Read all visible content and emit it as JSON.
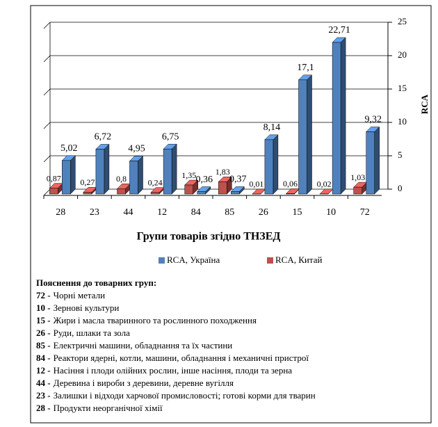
{
  "chart_data": {
    "type": "bar3d",
    "x_label": "Групи товарів згідно ТНЗЕД",
    "y_label": "RCA",
    "categories": [
      "28",
      "23",
      "44",
      "12",
      "84",
      "85",
      "26",
      "15",
      "10",
      "72"
    ],
    "series": [
      {
        "name": "RCA, Україна",
        "color": "#4f81bd",
        "values": [
          5.02,
          6.72,
          4.95,
          6.75,
          0.36,
          0.37,
          8.14,
          17.1,
          22.71,
          9.32
        ],
        "value_labels": [
          "5,02",
          "6,72",
          "4,95",
          "6,75",
          "0,36",
          "0,37",
          "8,14",
          "17,1",
          "22,71",
          "9,32"
        ]
      },
      {
        "name": "RCA, Китай",
        "color": "#c0504d",
        "values": [
          0.87,
          0.27,
          0.8,
          0.24,
          1.35,
          1.83,
          0.01,
          0.06,
          0.02,
          1.03
        ],
        "value_labels": [
          "0,87",
          "0,27",
          "0,8",
          "0,24",
          "1,35",
          "1,83",
          "0,01",
          "0,06",
          "0,02",
          "1,03"
        ]
      }
    ],
    "ylim": [
      0,
      25
    ],
    "yticks": [
      0,
      5,
      10,
      15,
      20,
      25
    ],
    "grid": true,
    "legend": "bottom"
  },
  "notes": {
    "title": "Пояснення до товарних груп:",
    "items": [
      {
        "code": "72 -",
        "text": "Чорні метали"
      },
      {
        "code": "10 -",
        "text": "Зернові культури"
      },
      {
        "code": "15 -",
        "text": "Жири і масла тваринного та рослинного походження"
      },
      {
        "code": "26 -",
        "text": "Руди, шлаки та зола"
      },
      {
        "code": "85 -",
        "text": "Електричні машини, обладнання та їх частини"
      },
      {
        "code": "84 -",
        "text": "Реактори ядерні, котли, машини, обладнання і механичні пристрої"
      },
      {
        "code": "12 -",
        "text": "Насіння і плоди олійних рослин, інше насіння, плоди та зерна"
      },
      {
        "code": "44 -",
        "text": "Деревина і вироби з деревини, деревне вугілля"
      },
      {
        "code": "23 -",
        "text": "Залишки і відходи харчової промисловості; готові корми для тварин"
      },
      {
        "code": "28 -",
        "text": "Продукти неорганічної хімії"
      }
    ]
  }
}
